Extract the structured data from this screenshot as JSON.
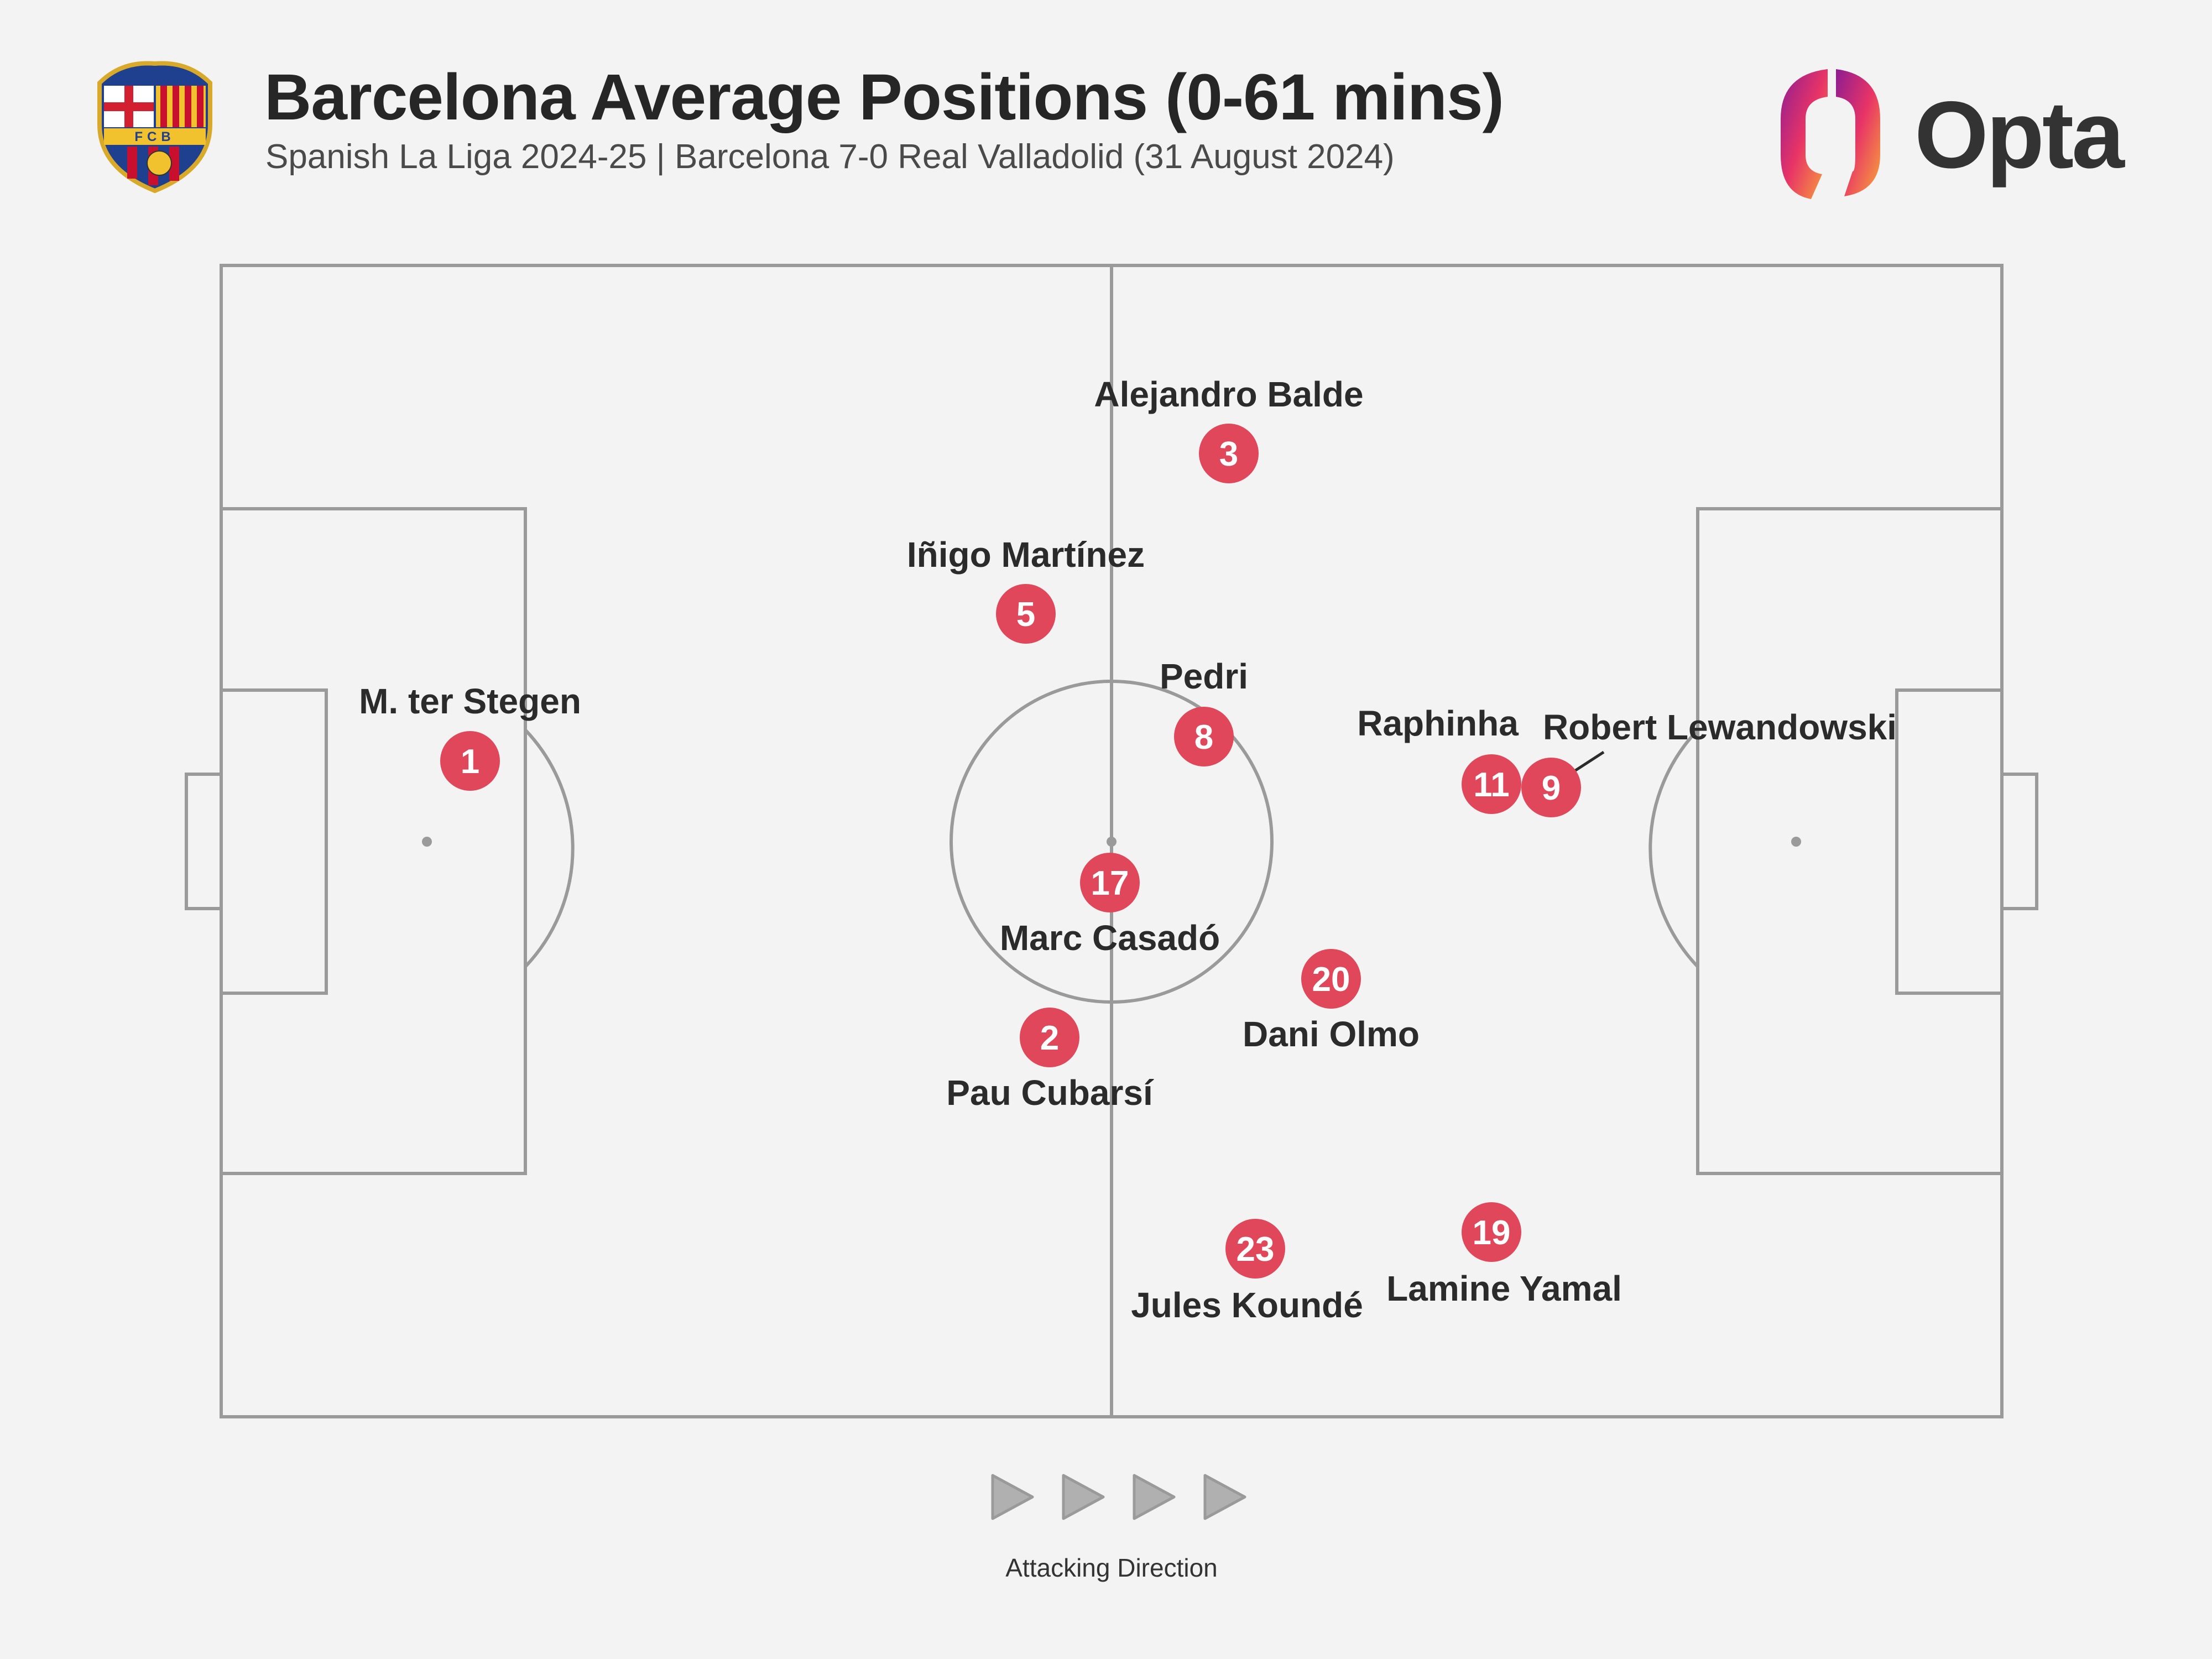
{
  "header": {
    "title": "Barcelona Average Positions (0-61 mins)",
    "subtitle": "Spanish La Liga 2024-25 | Barcelona 7-0 Real Valladolid (31 August 2024)",
    "crest_letters": "FCB",
    "brand": "Opta"
  },
  "colors": {
    "background": "#f3f3f3",
    "pitch_lines": "#9a9a9a",
    "player_marker": "#e0475a",
    "marker_text": "#ffffff",
    "label_text": "#2b2b2b",
    "opta_gradient": [
      "#9b1a8f",
      "#e8306a",
      "#f7a23a"
    ]
  },
  "icons": {
    "crest": "fc-barcelona-crest-icon",
    "opta_mark": "opta-logo-icon",
    "direction": "play-arrow-icon"
  },
  "players": [
    {
      "number": "1",
      "name": "M. ter Stegen",
      "label_pos": "above"
    },
    {
      "number": "3",
      "name": "Alejandro Balde",
      "label_pos": "above"
    },
    {
      "number": "5",
      "name": "Iñigo Martínez",
      "label_pos": "above"
    },
    {
      "number": "8",
      "name": "Pedri",
      "label_pos": "above"
    },
    {
      "number": "17",
      "name": "Marc Casadó",
      "label_pos": "below"
    },
    {
      "number": "2",
      "name": "Pau Cubarsí",
      "label_pos": "below"
    },
    {
      "number": "20",
      "name": "Dani Olmo",
      "label_pos": "below"
    },
    {
      "number": "11",
      "name": "Raphinha",
      "label_pos": "above"
    },
    {
      "number": "9",
      "name": "Robert Lewandowski",
      "label_pos": "above"
    },
    {
      "number": "23",
      "name": "Jules Koundé",
      "label_pos": "below"
    },
    {
      "number": "19",
      "name": "Lamine Yamal",
      "label_pos": "below"
    }
  ],
  "direction": {
    "label": "Attacking Direction",
    "arrow_count": 4
  }
}
